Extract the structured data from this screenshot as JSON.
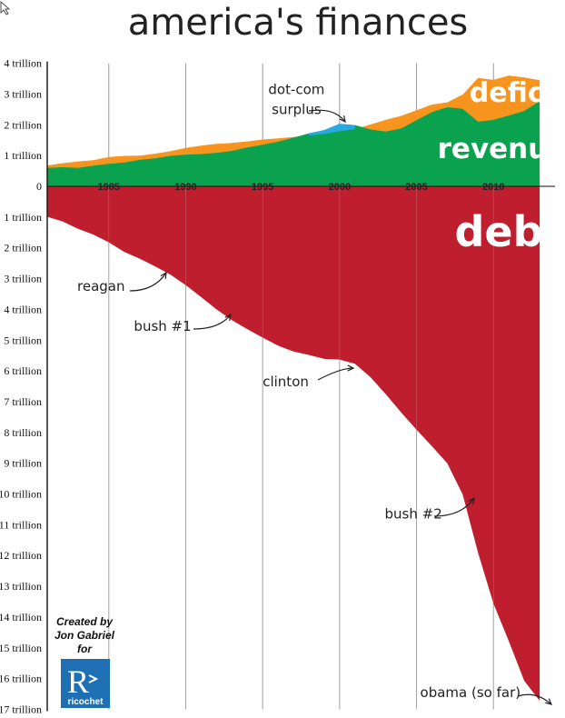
{
  "chart_data": {
    "type": "area",
    "title": "america's finances",
    "x_ticks": [
      1985,
      1990,
      1995,
      2000,
      2005,
      2010
    ],
    "y_ticks_above": [
      "4 trillion",
      "3 trillion",
      "2 trillion",
      "1 trillion",
      "0"
    ],
    "y_ticks_below": [
      "1 trillion",
      "2 trillion",
      "3 trillion",
      "4 trillion",
      "5 trillion",
      "6 trillion",
      "7 trillion",
      "8 trillion",
      "9 trillion",
      "10 trillion",
      "11 trillion",
      "12 trillion",
      "13 trillion",
      "14 trillion",
      "15 trillion",
      "16 trillion",
      "17 trillion"
    ],
    "ylim_above": [
      0,
      4
    ],
    "ylim_below": [
      0,
      17
    ],
    "xlim": [
      1981,
      2014
    ],
    "grid": true,
    "x": [
      1981,
      1982,
      1983,
      1984,
      1985,
      1986,
      1987,
      1988,
      1989,
      1990,
      1991,
      1992,
      1993,
      1994,
      1995,
      1996,
      1997,
      1998,
      1999,
      2000,
      2001,
      2002,
      2003,
      2004,
      2005,
      2006,
      2007,
      2008,
      2009,
      2010,
      2011,
      2012,
      2013
    ],
    "series": [
      {
        "name": "revenue",
        "color": "#0aa14f",
        "values": [
          0.6,
          0.62,
          0.6,
          0.67,
          0.73,
          0.77,
          0.86,
          0.91,
          0.99,
          1.03,
          1.05,
          1.09,
          1.15,
          1.26,
          1.35,
          1.45,
          1.58,
          1.72,
          1.83,
          2.03,
          1.99,
          1.85,
          1.78,
          1.88,
          2.15,
          2.41,
          2.57,
          2.52,
          2.1,
          2.16,
          2.3,
          2.45,
          2.77
        ]
      },
      {
        "name": "deficit",
        "color": "#f7941d",
        "values": [
          0.68,
          0.75,
          0.81,
          0.85,
          0.95,
          0.99,
          1.0,
          1.06,
          1.14,
          1.25,
          1.32,
          1.38,
          1.41,
          1.46,
          1.52,
          1.56,
          1.6,
          1.65,
          1.7,
          1.79,
          1.86,
          2.01,
          2.16,
          2.29,
          2.47,
          2.66,
          2.73,
          2.98,
          3.52,
          3.46,
          3.6,
          3.54,
          3.45
        ]
      },
      {
        "name": "dot-com surplus",
        "color": "#27aae1",
        "values": [
          null,
          null,
          null,
          null,
          null,
          null,
          null,
          null,
          null,
          null,
          null,
          null,
          null,
          null,
          null,
          null,
          null,
          1.72,
          1.83,
          2.03,
          1.99,
          null,
          null,
          null,
          null,
          null,
          null,
          null,
          null,
          null,
          null,
          null,
          null
        ]
      },
      {
        "name": "debt",
        "color": "#be1e2d",
        "values": [
          0.99,
          1.14,
          1.38,
          1.57,
          1.82,
          2.13,
          2.35,
          2.6,
          2.87,
          3.21,
          3.6,
          4.0,
          4.35,
          4.64,
          4.92,
          5.18,
          5.37,
          5.48,
          5.61,
          5.63,
          5.77,
          6.2,
          6.76,
          7.35,
          7.91,
          8.45,
          9.0,
          10.02,
          11.91,
          13.56,
          14.79,
          16.07,
          16.72
        ]
      }
    ],
    "annotations": [
      {
        "text": "dot-com",
        "x": 1997.2,
        "y": 3.0
      },
      {
        "text": "surplus",
        "x": 1997.2,
        "y": 2.35
      },
      {
        "text": "reagan",
        "x": 1984.5,
        "y": -3.4
      },
      {
        "text": "bush #1",
        "x": 1988.5,
        "y": -4.7
      },
      {
        "text": "clinton",
        "x": 1996.5,
        "y": -6.5
      },
      {
        "text": "bush #2",
        "x": 2004.8,
        "y": -10.8
      },
      {
        "text": "obama (so far)",
        "x": 2008.5,
        "y": -16.6
      }
    ]
  },
  "series_labels": {
    "deficit": "deficit",
    "revenue": "revenue",
    "debt": "debt"
  },
  "credit": {
    "line1": "Created by",
    "line2": "Jon Gabriel",
    "line3": "for",
    "logo_letter": "R",
    "logo_name": "ricochet"
  },
  "colors": {
    "revenue": "#0aa14f",
    "deficit": "#f7941d",
    "surplus": "#27aae1",
    "debt": "#be1e2d",
    "logo_blue": "#1f6fb5"
  }
}
